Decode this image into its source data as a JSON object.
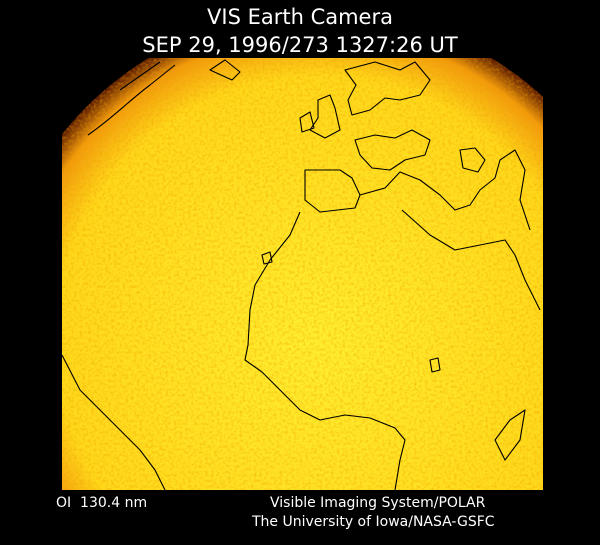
{
  "header": {
    "title": "VIS Earth Camera",
    "timestamp": "SEP 29, 1996/273 1327:26 UT"
  },
  "footer": {
    "wavelength": "OI  130.4 nm",
    "instrument": "Visible Imaging System/POLAR",
    "institution": "The University of Iowa/NASA-GSFC"
  }
}
